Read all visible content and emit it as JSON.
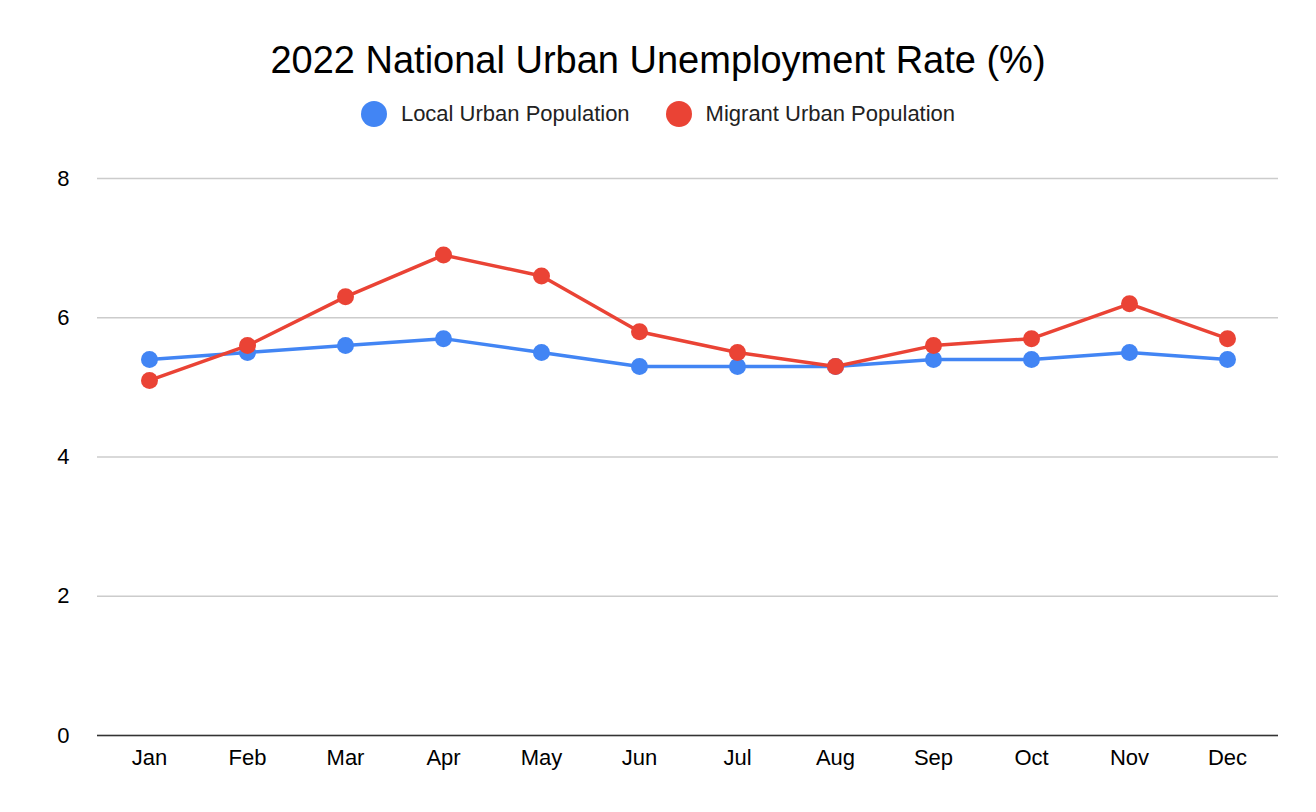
{
  "chart_data": {
    "type": "line",
    "title": "2022 National Urban Unemployment Rate (%)",
    "categories": [
      "Jan",
      "Feb",
      "Mar",
      "Apr",
      "May",
      "Jun",
      "Jul",
      "Aug",
      "Sep",
      "Oct",
      "Nov",
      "Dec"
    ],
    "series": [
      {
        "name": "Local Urban Population",
        "color": "#4285f4",
        "marker": "circle",
        "values": [
          5.4,
          5.5,
          5.6,
          5.7,
          5.5,
          5.3,
          5.3,
          5.3,
          5.4,
          5.4,
          5.5,
          5.4
        ]
      },
      {
        "name": "Migrant Urban Population",
        "color": "#ea4335",
        "marker": "circle",
        "values": [
          5.1,
          5.6,
          6.3,
          6.9,
          6.6,
          5.8,
          5.5,
          5.3,
          5.6,
          5.7,
          6.2,
          5.7
        ]
      }
    ],
    "ylim": [
      0,
      8
    ],
    "yticks": [
      0,
      2,
      4,
      6,
      8
    ],
    "grid": true,
    "legend": "top"
  }
}
